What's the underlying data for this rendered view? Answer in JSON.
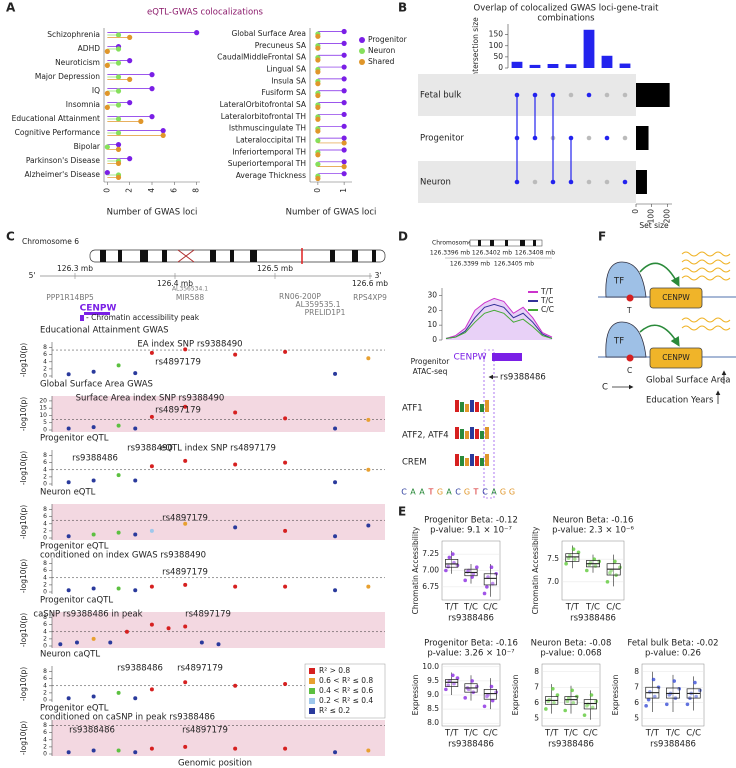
{
  "panel_labels": [
    "A",
    "B",
    "C",
    "D",
    "E",
    "F"
  ],
  "chart_data": [
    {
      "type": "lollipop",
      "title": "eQTL-GWAS colocalizations",
      "legend": "right",
      "categories": [
        "Schizophrenia",
        "ADHD",
        "Neuroticism",
        "Major Depression",
        "IQ",
        "Insomnia",
        "Educational Attainment",
        "Cognitive Performance",
        "Bipolar",
        "Parkinson's Disease",
        "Alzheimer's Disease"
      ],
      "series": [
        {
          "name": "Progenitor",
          "color": "#7a1fe6",
          "values": [
            8,
            1,
            2,
            4,
            4,
            2,
            4,
            5,
            1,
            2,
            0
          ]
        },
        {
          "name": "Neuron",
          "color": "#86e05c",
          "values": [
            1,
            1,
            1,
            1,
            1,
            1,
            1,
            1,
            0,
            1,
            1
          ]
        },
        {
          "name": "Shared",
          "color": "#e0962a",
          "values": [
            2,
            0,
            0,
            2,
            0,
            0,
            3,
            5,
            1,
            1,
            1
          ]
        }
      ],
      "xlim": [
        -0.3,
        8.3
      ],
      "xticks": [
        0,
        2,
        4,
        6,
        8
      ],
      "xlabel": "Number of GWAS loci"
    },
    {
      "type": "lollipop",
      "categories": [
        "Global Surface Area",
        "Precuneus SA",
        "CaudalMiddleFrontal SA",
        "Lingual SA",
        "Insula SA",
        "Fusiform SA",
        "LateralOrbitofrontal SA",
        "Lateralorbitofrontal TH",
        "Isthmuscingulate TH",
        "Lateraloccipital TH",
        "Inferiortemporal TH",
        "Superiortemporal TH",
        "Average Thickness"
      ],
      "series": [
        {
          "color": "#7a1fe6",
          "values": [
            1,
            1,
            1,
            1,
            1,
            1,
            1,
            1,
            1,
            1,
            1,
            1,
            1
          ]
        },
        {
          "color": "#86e05c",
          "values": [
            0,
            0,
            0,
            0,
            0,
            0,
            0,
            0,
            0,
            0,
            0,
            0,
            0
          ]
        },
        {
          "color": "#e0962a",
          "values": [
            0,
            0,
            0,
            0,
            0,
            0,
            0,
            0,
            0,
            1,
            0,
            1,
            0
          ]
        }
      ],
      "xlim": [
        -0.3,
        1.3
      ],
      "xticks": [
        0,
        1
      ],
      "xlabel": "Number of GWAS loci"
    },
    {
      "type": "upset",
      "title": [
        "Overlap of colocalized GWAS loci-gene-trait",
        "combinations"
      ],
      "values": [
        28,
        14,
        18,
        17,
        172,
        55,
        20
      ],
      "color": "#2323ee",
      "ylim": [
        0,
        180
      ],
      "yticks": [
        0,
        50,
        100,
        150
      ],
      "ylabel": "Intersection size",
      "sets": [
        "Fetal bulk",
        "Progenitor",
        "Neuron"
      ],
      "set_sizes": [
        215,
        80,
        70
      ],
      "set_xlim": [
        0,
        230
      ],
      "set_xticks": [
        0,
        100,
        200
      ],
      "set_xlabel": "Set size",
      "membership": [
        [
          0,
          1,
          2
        ],
        [
          0,
          1
        ],
        [
          0,
          2
        ],
        [
          1,
          2
        ],
        [
          0
        ],
        [
          1
        ],
        [
          2
        ]
      ]
    },
    {
      "type": "line",
      "ylim": [
        0,
        35
      ],
      "yticks": [
        0,
        10,
        20,
        30
      ],
      "ylabel": [
        "Progenitor",
        "ATAC-seq"
      ],
      "legend": "top-right",
      "series": [
        {
          "name": "T/T",
          "color": "#cc33cc",
          "values": [
            1,
            3,
            8,
            20,
            25,
            28,
            26,
            18,
            22,
            15,
            5,
            2
          ]
        },
        {
          "name": "T/C",
          "color": "#333399",
          "values": [
            1,
            2,
            6,
            15,
            22,
            24,
            22,
            15,
            18,
            12,
            4,
            1
          ]
        },
        {
          "name": "C/C",
          "color": "#44aa33",
          "values": [
            1,
            2,
            5,
            12,
            18,
            20,
            18,
            12,
            14,
            9,
            3,
            1
          ]
        }
      ]
    },
    {
      "type": "box",
      "title": [
        "Progenitor Beta: -0.12",
        "p-value: 9.1 × 10⁻⁷"
      ],
      "ylabel": "Chromatin Accessibility",
      "xlabel": "rs9388486",
      "color": "#8a2be2",
      "categories": [
        "T/T",
        "T/C",
        "C/C"
      ],
      "ylim": [
        6.55,
        7.45
      ],
      "yticks": [
        6.75,
        {
          "value": 7,
          "label": "7.00"
        },
        7.25
      ],
      "low": [
        6.95,
        6.8,
        6.6
      ],
      "q1": [
        7.05,
        6.92,
        6.78
      ],
      "median": [
        7.1,
        6.97,
        6.88
      ],
      "q3": [
        7.17,
        7.02,
        6.95
      ],
      "high": [
        7.3,
        7.1,
        7.1
      ],
      "points": [
        [
          7.0,
          7.12,
          7.2,
          7.08,
          7.25,
          7.06
        ],
        [
          6.85,
          6.95,
          7.0,
          7.05,
          6.9,
          6.98
        ],
        [
          6.65,
          6.8,
          6.9,
          6.95,
          7.05,
          6.75
        ]
      ]
    },
    {
      "type": "box",
      "title": [
        "Neuron Beta: -0.16",
        "p-value: 2.3 × 10⁻⁶"
      ],
      "ylabel": "Chromatin Accessibility",
      "xlabel": "rs9388486",
      "color": "#5fc93a",
      "categories": [
        "T/T",
        "T/C",
        "C/C"
      ],
      "ylim": [
        6.6,
        7.9
      ],
      "yticks": [
        {
          "value": 7,
          "label": "7.0"
        },
        7.5
      ],
      "low": [
        7.3,
        7.2,
        6.9
      ],
      "q1": [
        7.45,
        7.33,
        7.15
      ],
      "median": [
        7.55,
        7.4,
        7.28
      ],
      "q3": [
        7.62,
        7.47,
        7.4
      ],
      "high": [
        7.8,
        7.6,
        7.6
      ],
      "points": [
        [
          7.4,
          7.5,
          7.58,
          7.65,
          7.72,
          7.52
        ],
        [
          7.25,
          7.35,
          7.42,
          7.45,
          7.5,
          7.38
        ],
        [
          7.0,
          7.15,
          7.25,
          7.32,
          7.45,
          7.2
        ]
      ]
    },
    {
      "type": "box",
      "title": [
        "Progenitor Beta: -0.16",
        "p-value: 3.26 × 10⁻⁷"
      ],
      "ylabel": "Expression",
      "xlabel": "rs9388486",
      "color": "#8a2be2",
      "categories": [
        "T/T",
        "T/C",
        "C/C"
      ],
      "ylim": [
        7.9,
        10.1
      ],
      "yticks": [
        {
          "value": 8,
          "label": "8.0"
        },
        8.5,
        {
          "value": 9,
          "label": "9.0"
        },
        9.5,
        {
          "value": 10,
          "label": "10.0"
        }
      ],
      "low": [
        9.0,
        8.8,
        8.5
      ],
      "q1": [
        9.3,
        9.1,
        8.85
      ],
      "median": [
        9.45,
        9.25,
        9.05
      ],
      "q3": [
        9.55,
        9.4,
        9.2
      ],
      "high": [
        9.8,
        9.7,
        9.6
      ],
      "points": [
        [
          9.2,
          9.4,
          9.5,
          9.6,
          9.7,
          9.35
        ],
        [
          8.9,
          9.1,
          9.2,
          9.3,
          9.5,
          9.25
        ],
        [
          8.6,
          8.8,
          9.0,
          9.1,
          9.3,
          8.95
        ]
      ]
    },
    {
      "type": "box",
      "title": [
        "Neuron Beta: -0.08",
        "p-value: 0.068"
      ],
      "ylabel": "Expression",
      "xlabel": "rs9388486",
      "color": "#5fc93a",
      "categories": [
        "T/T",
        "T/C",
        "C/C"
      ],
      "ylim": [
        4.5,
        8.5
      ],
      "yticks": [
        5,
        6,
        7,
        8
      ],
      "low": [
        5.3,
        5.3,
        4.9
      ],
      "q1": [
        5.9,
        5.9,
        5.6
      ],
      "median": [
        6.15,
        6.2,
        5.95
      ],
      "q3": [
        6.4,
        6.4,
        6.2
      ],
      "high": [
        7.2,
        7.1,
        6.8
      ],
      "points": [
        [
          5.6,
          6.0,
          6.2,
          6.5,
          6.9,
          6.1
        ],
        [
          5.5,
          6.0,
          6.3,
          6.4,
          6.8,
          6.1
        ],
        [
          5.2,
          5.7,
          5.9,
          6.1,
          6.5,
          5.8
        ]
      ]
    },
    {
      "type": "box",
      "title": [
        "Fetal bulk Beta: -0.02",
        "p-value: 0.26"
      ],
      "ylabel": "Expression",
      "xlabel": "rs9388486",
      "color": "#3a4fd6",
      "categories": [
        "T/T",
        "T/C",
        "C/C"
      ],
      "ylim": [
        4.5,
        8.5
      ],
      "yticks": [
        5,
        6,
        7,
        8
      ],
      "low": [
        5.4,
        5.4,
        5.5
      ],
      "q1": [
        6.3,
        6.3,
        6.3
      ],
      "median": [
        6.65,
        6.6,
        6.6
      ],
      "q3": [
        7.0,
        6.95,
        6.9
      ],
      "high": [
        8.0,
        7.8,
        7.7
      ],
      "points": [
        [
          5.8,
          6.4,
          6.7,
          7.0,
          7.5,
          6.2
        ],
        [
          5.9,
          6.3,
          6.6,
          6.9,
          7.4,
          6.5
        ],
        [
          5.9,
          6.4,
          6.6,
          6.8,
          7.3,
          6.3
        ]
      ]
    }
  ],
  "panel_c": {
    "chromosome": "Chromosome 6",
    "end5": "5'",
    "end3": "3'",
    "mb_labels": [
      "126.3 mb",
      "126.4 mb",
      "126.5 mb",
      "126.6 mb"
    ],
    "genes": [
      "PPP1R14BP5",
      "CENPW",
      "AL356534.1",
      "MIR588",
      "RN06-200P",
      "AL359535.1",
      "PRELID1P1",
      "RPS4XP9"
    ],
    "peak_label": "- Chromatin accessibility peak",
    "ylabel": "-log10(p)",
    "xlabel": "Genomic position",
    "xlim": [
      126.28,
      126.68
    ],
    "ld_colors": [
      "#d62020",
      "#e8a030",
      "#5cc040",
      "#9ec8ec",
      "#2a3a9c"
    ],
    "ld_labels": [
      "R² > 0.8",
      "0.6 < R² ≤ 0.8",
      "0.4 < R² ≤ 0.6",
      "0.2 < R² ≤ 0.4",
      "R² ≤ 0.2"
    ],
    "tracks": [
      {
        "title": [
          "Educational Attainment GWAS"
        ],
        "annotations": [
          "EA index SNP rs9388490",
          "rs4897179"
        ],
        "shaded": false,
        "ylim": [
          0,
          9
        ],
        "yticks": [
          0,
          2,
          4,
          6,
          8
        ],
        "threshold": 7.3,
        "x": [
          126.3,
          126.33,
          126.36,
          126.38,
          126.4,
          126.44,
          126.5,
          126.56,
          126.62,
          126.66
        ],
        "y": [
          0.5,
          1.2,
          3,
          0.8,
          6.5,
          7.5,
          6,
          6.8,
          0.6,
          5
        ],
        "ld": [
          4,
          4,
          2,
          4,
          0,
          0,
          0,
          0,
          4,
          1
        ]
      },
      {
        "title": [
          "Global Surface Area GWAS"
        ],
        "annotations": [
          "Surface Area index SNP rs9388490",
          "rs4897179"
        ],
        "shaded": true,
        "ylim": [
          0,
          22
        ],
        "yticks": [
          0,
          5,
          10,
          15,
          20
        ],
        "threshold": 7.3,
        "x": [
          126.3,
          126.33,
          126.36,
          126.38,
          126.4,
          126.44,
          126.5,
          126.56,
          126.62,
          126.66
        ],
        "y": [
          1,
          2,
          3,
          1,
          9,
          16,
          12,
          8,
          1,
          7
        ],
        "ld": [
          4,
          4,
          2,
          4,
          0,
          0,
          0,
          0,
          4,
          1
        ]
      },
      {
        "title": [
          "Progenitor eQTL"
        ],
        "annotations": [
          "rs9388486",
          "rs9388490",
          "eQTL index SNP rs4897179"
        ],
        "shaded": false,
        "ylim": [
          0,
          9
        ],
        "yticks": [
          0,
          2,
          4,
          6,
          8
        ],
        "threshold": 4,
        "x": [
          126.3,
          126.33,
          126.36,
          126.38,
          126.4,
          126.44,
          126.5,
          126.56,
          126.62,
          126.66
        ],
        "y": [
          0.5,
          1,
          2.5,
          1,
          5,
          6.5,
          5.5,
          6,
          0.5,
          4
        ],
        "ld": [
          4,
          4,
          2,
          4,
          0,
          0,
          0,
          0,
          4,
          1
        ]
      },
      {
        "title": [
          "Neuron eQTL"
        ],
        "annotations": [
          "rs4897179"
        ],
        "shaded": true,
        "ylim": [
          0,
          9
        ],
        "yticks": [
          0,
          2,
          4,
          6,
          8
        ],
        "threshold": 5,
        "x": [
          126.3,
          126.33,
          126.36,
          126.38,
          126.4,
          126.44,
          126.5,
          126.56,
          126.62,
          126.66
        ],
        "y": [
          0.5,
          1,
          1.5,
          1,
          2,
          4,
          3,
          2,
          0.5,
          3.5
        ],
        "ld": [
          4,
          2,
          2,
          4,
          3,
          1,
          4,
          0,
          4,
          4
        ]
      },
      {
        "title": [
          "Progenitor eQTL",
          "conditioned on index GWAS rs9388490"
        ],
        "annotations": [
          "rs4897179"
        ],
        "shaded": false,
        "ylim": [
          0,
          9
        ],
        "yticks": [
          0,
          2,
          4,
          6,
          8
        ],
        "threshold": 4,
        "x": [
          126.3,
          126.33,
          126.36,
          126.38,
          126.4,
          126.44,
          126.5,
          126.56,
          126.62,
          126.66
        ],
        "y": [
          0.5,
          1,
          1,
          0.5,
          1.5,
          2,
          1.5,
          1.5,
          0.5,
          1.5
        ],
        "ld": [
          4,
          4,
          2,
          4,
          0,
          0,
          0,
          0,
          4,
          1
        ]
      },
      {
        "title": [
          "Progenitor caQTL"
        ],
        "annotations": [
          "caSNP rs9388486 in peak",
          "rs4897179"
        ],
        "shaded": true,
        "ylim": [
          0,
          9
        ],
        "yticks": [
          0,
          2,
          4,
          6,
          8
        ],
        "threshold": 4,
        "x": [
          126.29,
          126.31,
          126.33,
          126.35,
          126.37,
          126.4,
          126.42,
          126.44,
          126.46,
          126.48
        ],
        "y": [
          0.5,
          1,
          2,
          1,
          4,
          6,
          5,
          5.5,
          1,
          0.5
        ],
        "ld": [
          4,
          4,
          1,
          4,
          0,
          0,
          0,
          0,
          4,
          4
        ]
      },
      {
        "title": [
          "Neuron caQTL"
        ],
        "annotations": [
          "rs9388486",
          "rs4897179"
        ],
        "shaded": false,
        "ylim": [
          0,
          9
        ],
        "yticks": [
          0,
          2,
          4,
          6,
          8
        ],
        "threshold": 4,
        "legend": true,
        "x": [
          126.3,
          126.33,
          126.36,
          126.38,
          126.4,
          126.44,
          126.5,
          126.56,
          126.62,
          126.66
        ],
        "y": [
          0.5,
          1,
          2,
          0.5,
          3,
          5,
          4,
          4.5,
          1,
          3
        ],
        "ld": [
          4,
          4,
          2,
          4,
          0,
          0,
          0,
          0,
          4,
          1
        ]
      },
      {
        "title": [
          "Progenitor eQTL",
          "conditioned on caSNP in peak rs9388486"
        ],
        "annotations": [
          "rs9388486",
          "rs4897179"
        ],
        "shaded": true,
        "ylim": [
          0,
          9
        ],
        "yticks": [
          0,
          2,
          4,
          6,
          8
        ],
        "threshold": 8,
        "x": [
          126.3,
          126.33,
          126.36,
          126.38,
          126.4,
          126.44,
          126.5,
          126.56,
          126.62,
          126.66
        ],
        "y": [
          0.5,
          1,
          1,
          0.5,
          1.5,
          2,
          1.5,
          1.5,
          0.5,
          1
        ],
        "ld": [
          4,
          4,
          2,
          4,
          0,
          0,
          0,
          0,
          4,
          1
        ]
      }
    ]
  },
  "panel_d": {
    "chromosome": "Chromosome 6",
    "coords": [
      "126.3396 mb",
      "126.3402 mb",
      "126.3408 mb",
      "126.3399 mb",
      "126.3405 mb"
    ],
    "gene": "CENPW",
    "snp": "rs9388486",
    "motifs": [
      "ATF1",
      "ATF2, ATF4",
      "CREM"
    ],
    "sequence": [
      "C",
      "A",
      "A",
      "T",
      "G",
      "A",
      "C",
      "G",
      "T",
      "C",
      "A",
      "G",
      "G"
    ]
  },
  "panel_f": {
    "tf": "TF",
    "allele_t": "T",
    "allele_c": "C",
    "gene": "CENPW",
    "effect_allele": "C",
    "effects": [
      "Global Surface Area",
      "Education Years"
    ]
  }
}
